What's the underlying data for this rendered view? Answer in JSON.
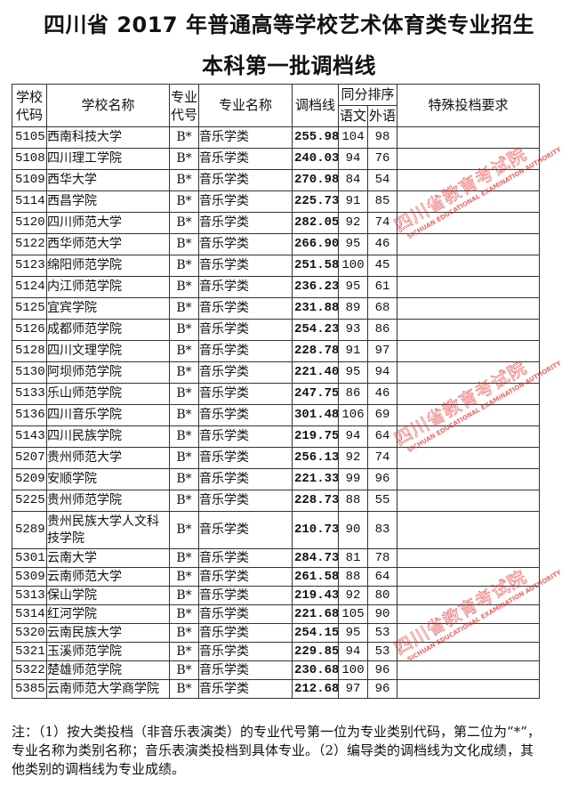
{
  "title_line1": "四川省 2017 年普通高等学校艺术体育类专业招生",
  "title_line2": "本科第一批调档线",
  "headers": {
    "school_code": "学校代码",
    "school_name": "学校名称",
    "major_code": "专业代号",
    "major_name": "专业名称",
    "cutoff": "调档线",
    "tie_order": "同分排序",
    "chinese": "语文",
    "foreign": "外语",
    "special": "特殊投档要求"
  },
  "rows": [
    {
      "code": "5105",
      "name": "西南科技大学",
      "major_code": "B*",
      "major": "音乐学类",
      "score": "255.98",
      "chinese": "104",
      "foreign": "98",
      "special": ""
    },
    {
      "code": "5108",
      "name": "四川理工学院",
      "major_code": "B*",
      "major": "音乐学类",
      "score": "240.03",
      "chinese": "94",
      "foreign": "76",
      "special": ""
    },
    {
      "code": "5109",
      "name": "西华大学",
      "major_code": "B*",
      "major": "音乐学类",
      "score": "270.98",
      "chinese": "84",
      "foreign": "54",
      "special": ""
    },
    {
      "code": "5114",
      "name": "西昌学院",
      "major_code": "B*",
      "major": "音乐学类",
      "score": "225.73",
      "chinese": "91",
      "foreign": "85",
      "special": ""
    },
    {
      "code": "5120",
      "name": "四川师范大学",
      "major_code": "B*",
      "major": "音乐学类",
      "score": "282.05",
      "chinese": "92",
      "foreign": "74",
      "special": ""
    },
    {
      "code": "5122",
      "name": "西华师范大学",
      "major_code": "B*",
      "major": "音乐学类",
      "score": "266.90",
      "chinese": "95",
      "foreign": "46",
      "special": ""
    },
    {
      "code": "5123",
      "name": "绵阳师范学院",
      "major_code": "B*",
      "major": "音乐学类",
      "score": "251.58",
      "chinese": "100",
      "foreign": "45",
      "special": ""
    },
    {
      "code": "5124",
      "name": "内江师范学院",
      "major_code": "B*",
      "major": "音乐学类",
      "score": "236.23",
      "chinese": "95",
      "foreign": "61",
      "special": ""
    },
    {
      "code": "5125",
      "name": "宜宾学院",
      "major_code": "B*",
      "major": "音乐学类",
      "score": "231.88",
      "chinese": "89",
      "foreign": "68",
      "special": ""
    },
    {
      "code": "5126",
      "name": "成都师范学院",
      "major_code": "B*",
      "major": "音乐学类",
      "score": "254.23",
      "chinese": "93",
      "foreign": "86",
      "special": ""
    },
    {
      "code": "5128",
      "name": "四川文理学院",
      "major_code": "B*",
      "major": "音乐学类",
      "score": "228.78",
      "chinese": "91",
      "foreign": "97",
      "special": ""
    },
    {
      "code": "5130",
      "name": "阿坝师范学院",
      "major_code": "B*",
      "major": "音乐学类",
      "score": "221.40",
      "chinese": "95",
      "foreign": "94",
      "special": ""
    },
    {
      "code": "5133",
      "name": "乐山师范学院",
      "major_code": "B*",
      "major": "音乐学类",
      "score": "247.75",
      "chinese": "86",
      "foreign": "46",
      "special": ""
    },
    {
      "code": "5136",
      "name": "四川音乐学院",
      "major_code": "B*",
      "major": "音乐学类",
      "score": "301.48",
      "chinese": "106",
      "foreign": "69",
      "special": ""
    },
    {
      "code": "5143",
      "name": "四川民族学院",
      "major_code": "B*",
      "major": "音乐学类",
      "score": "219.75",
      "chinese": "94",
      "foreign": "64",
      "special": ""
    },
    {
      "code": "5207",
      "name": "贵州师范大学",
      "major_code": "B*",
      "major": "音乐学类",
      "score": "256.13",
      "chinese": "92",
      "foreign": "74",
      "special": ""
    },
    {
      "code": "5209",
      "name": "安顺学院",
      "major_code": "B*",
      "major": "音乐学类",
      "score": "221.33",
      "chinese": "99",
      "foreign": "96",
      "special": ""
    },
    {
      "code": "5225",
      "name": "贵州师范学院",
      "major_code": "B*",
      "major": "音乐学类",
      "score": "228.73",
      "chinese": "88",
      "foreign": "55",
      "special": ""
    },
    {
      "code": "5289",
      "name": "贵州民族大学人文科技学院",
      "major_code": "B*",
      "major": "音乐学类",
      "score": "210.73",
      "chinese": "90",
      "foreign": "83",
      "special": ""
    },
    {
      "code": "5301",
      "name": "云南大学",
      "major_code": "B*",
      "major": "音乐学类",
      "score": "284.73",
      "chinese": "81",
      "foreign": "78",
      "special": ""
    },
    {
      "code": "5309",
      "name": "云南师范大学",
      "major_code": "B*",
      "major": "音乐学类",
      "score": "261.58",
      "chinese": "88",
      "foreign": "64",
      "special": ""
    },
    {
      "code": "5313",
      "name": "保山学院",
      "major_code": "B*",
      "major": "音乐学类",
      "score": "219.43",
      "chinese": "92",
      "foreign": "80",
      "special": ""
    },
    {
      "code": "5314",
      "name": "红河学院",
      "major_code": "B*",
      "major": "音乐学类",
      "score": "221.68",
      "chinese": "105",
      "foreign": "90",
      "special": ""
    },
    {
      "code": "5320",
      "name": "云南民族大学",
      "major_code": "B*",
      "major": "音乐学类",
      "score": "254.15",
      "chinese": "95",
      "foreign": "53",
      "special": ""
    },
    {
      "code": "5321",
      "name": "玉溪师范学院",
      "major_code": "B*",
      "major": "音乐学类",
      "score": "229.85",
      "chinese": "94",
      "foreign": "53",
      "special": ""
    },
    {
      "code": "5322",
      "name": "楚雄师范学院",
      "major_code": "B*",
      "major": "音乐学类",
      "score": "230.68",
      "chinese": "100",
      "foreign": "96",
      "special": ""
    },
    {
      "code": "5385",
      "name": "云南师范大学商学院",
      "major_code": "B*",
      "major": "音乐学类",
      "score": "212.68",
      "chinese": "97",
      "foreign": "96",
      "special": ""
    }
  ],
  "note": "注：（1）按大类投档（非音乐表演类）的专业代号第一位为专业类别代码，第二位为“*”，专业名称为类别名称；音乐表演类投档到具体专业。（2）编导类的调档线为文化成绩，其他类别的调档线为专业成绩。",
  "watermark": {
    "cn": "四川省教育考试院",
    "en": "SICHUAN EDUCATIONAL EXAMINATION AUTHORITY",
    "color": "#e62828"
  }
}
